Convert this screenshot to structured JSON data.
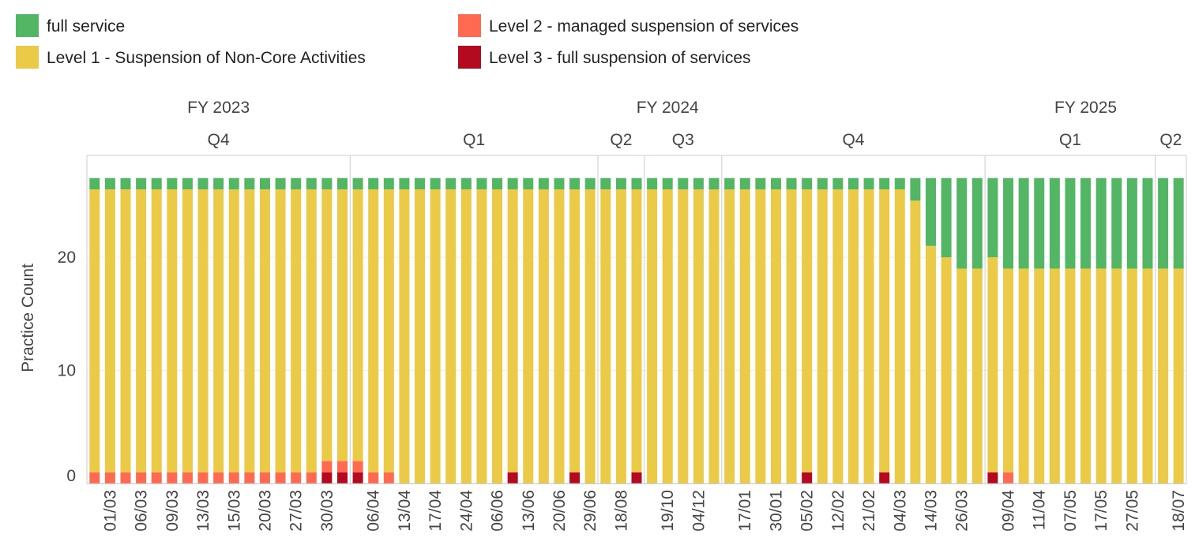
{
  "chart_data": {
    "type": "stacked-bar",
    "ylabel": "Practice Count",
    "categories": [
      null,
      "01/03",
      null,
      "06/03",
      null,
      "09/03",
      null,
      "13/03",
      null,
      "15/03",
      null,
      "20/03",
      null,
      "27/03",
      null,
      "30/03",
      null,
      null,
      "06/04",
      null,
      "13/04",
      null,
      "17/04",
      null,
      "24/04",
      null,
      "06/06",
      null,
      "13/06",
      null,
      "20/06",
      null,
      "29/06",
      null,
      "18/08",
      null,
      null,
      "19/10",
      null,
      "04/12",
      null,
      null,
      "17/01",
      null,
      "30/01",
      null,
      "05/02",
      null,
      "12/02",
      null,
      "21/02",
      null,
      "04/03",
      null,
      "14/03",
      null,
      "26/03",
      null,
      null,
      "09/04",
      null,
      "11/04",
      null,
      "07/05",
      null,
      "17/05",
      null,
      "27/05",
      null,
      null,
      "18/07"
    ],
    "series": [
      {
        "name": "full service",
        "color": "#52b665",
        "values": [
          1,
          1,
          1,
          1,
          1,
          1,
          1,
          1,
          1,
          1,
          1,
          1,
          1,
          1,
          1,
          1,
          1,
          1,
          1,
          1,
          1,
          1,
          1,
          1,
          1,
          1,
          1,
          1,
          1,
          1,
          1,
          1,
          1,
          1,
          1,
          1,
          1,
          1,
          1,
          1,
          1,
          1,
          1,
          1,
          1,
          1,
          1,
          1,
          1,
          1,
          1,
          1,
          1,
          2,
          6,
          7,
          8,
          8,
          7,
          8,
          8,
          8,
          8,
          8,
          8,
          8,
          8,
          8,
          8,
          8,
          8
        ]
      },
      {
        "name": "Level 1 - Suspension of Non-Core Activities",
        "color": "#ebca48",
        "values": [
          25,
          25,
          25,
          25,
          25,
          25,
          25,
          25,
          25,
          25,
          25,
          25,
          25,
          25,
          25,
          24,
          24,
          24,
          25,
          25,
          26,
          26,
          26,
          26,
          26,
          26,
          26,
          25,
          26,
          26,
          26,
          25,
          26,
          26,
          26,
          25,
          26,
          26,
          26,
          26,
          26,
          26,
          26,
          26,
          26,
          26,
          25,
          26,
          26,
          26,
          26,
          25,
          26,
          25,
          21,
          20,
          19,
          19,
          19,
          18,
          19,
          19,
          19,
          19,
          19,
          19,
          19,
          19,
          19,
          19,
          19
        ]
      },
      {
        "name": "Level 2 - managed suspension of services",
        "color": "#ff6a50",
        "values": [
          1,
          1,
          1,
          1,
          1,
          1,
          1,
          1,
          1,
          1,
          1,
          1,
          1,
          1,
          1,
          1,
          1,
          1,
          1,
          1,
          0,
          0,
          0,
          0,
          0,
          0,
          0,
          0,
          0,
          0,
          0,
          0,
          0,
          0,
          0,
          0,
          0,
          0,
          0,
          0,
          0,
          0,
          0,
          0,
          0,
          0,
          0,
          0,
          0,
          0,
          0,
          0,
          0,
          0,
          0,
          0,
          0,
          0,
          0,
          1,
          0,
          0,
          0,
          0,
          0,
          0,
          0,
          0,
          0,
          0,
          0
        ]
      },
      {
        "name": "Level 3 - full suspension of services",
        "color": "#b5091f",
        "values": [
          0,
          0,
          0,
          0,
          0,
          0,
          0,
          0,
          0,
          0,
          0,
          0,
          0,
          0,
          0,
          1,
          1,
          1,
          0,
          0,
          0,
          0,
          0,
          0,
          0,
          0,
          0,
          1,
          0,
          0,
          0,
          1,
          0,
          0,
          0,
          1,
          0,
          0,
          0,
          0,
          0,
          0,
          0,
          0,
          0,
          0,
          1,
          0,
          0,
          0,
          0,
          1,
          0,
          0,
          0,
          0,
          0,
          0,
          1,
          0,
          0,
          0,
          0,
          0,
          0,
          0,
          0,
          0,
          0,
          0,
          0
        ]
      }
    ],
    "quarters": [
      {
        "label": "Q4",
        "count": 17
      },
      {
        "label": "Q1",
        "count": 16
      },
      {
        "label": "Q2",
        "count": 3
      },
      {
        "label": "Q3",
        "count": 5
      },
      {
        "label": "Q4",
        "count": 17
      },
      {
        "label": "Q1",
        "count": 11
      },
      {
        "label": "Q2",
        "count": 2
      }
    ],
    "years": [
      {
        "label": "FY 2023",
        "count": 17
      },
      {
        "label": "FY 2024",
        "count": 41
      },
      {
        "label": "FY 2025",
        "count": 13
      }
    ],
    "ylim": [
      0,
      29
    ],
    "yticks": [
      0,
      10,
      20
    ],
    "grid": true
  }
}
